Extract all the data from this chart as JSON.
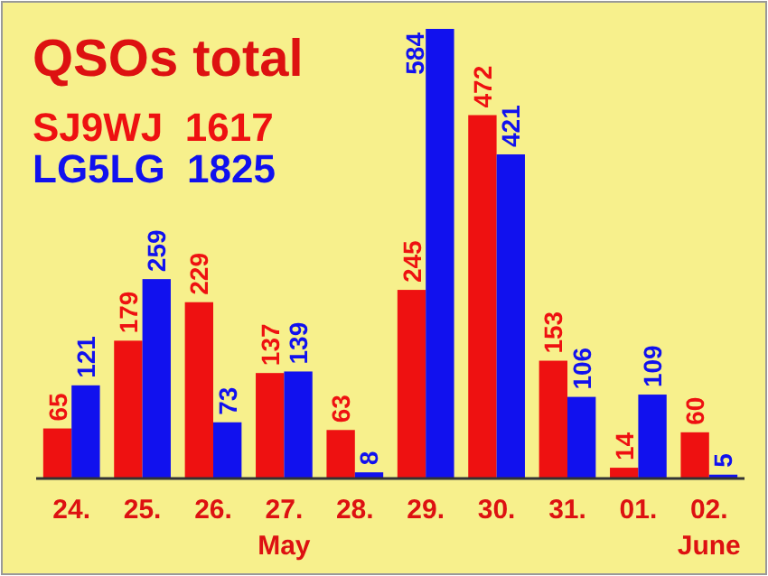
{
  "chart_data": {
    "type": "bar",
    "title": "QSOs total",
    "categories": [
      "24.",
      "25.",
      "26.",
      "27.",
      "28.",
      "29.",
      "30.",
      "31.",
      "01.",
      "02."
    ],
    "series": [
      {
        "name": "SJ9WJ  1617",
        "color": "#ee1111",
        "values": [
          65,
          179,
          229,
          137,
          63,
          245,
          472,
          153,
          14,
          60
        ]
      },
      {
        "name": "LG5LG  1825",
        "color": "#1111ee",
        "values": [
          121,
          259,
          73,
          139,
          8,
          584,
          421,
          106,
          109,
          5
        ]
      }
    ],
    "data_labels": true,
    "legend": "top left",
    "tick_labels": "x",
    "annotations": [
      "May",
      "June"
    ]
  }
}
